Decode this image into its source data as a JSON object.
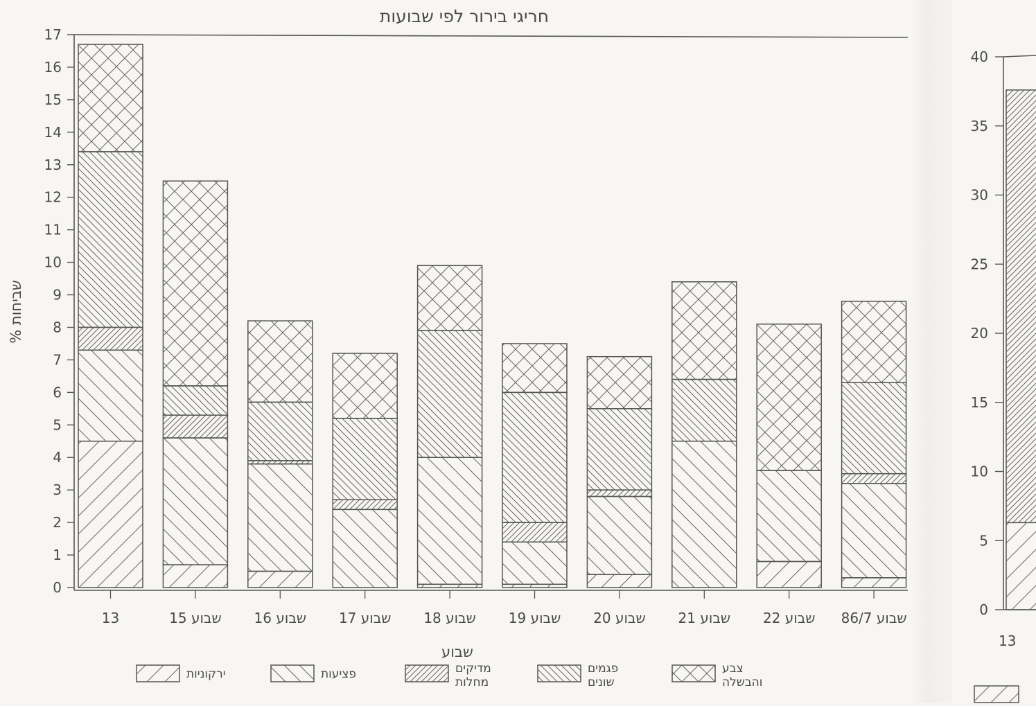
{
  "chart_data": [
    {
      "type": "bar",
      "stacked": true,
      "title": "חריגי בירור לפי שבועות",
      "xlabel": "שבוע",
      "ylabel": "% שביחות",
      "ylim": [
        0,
        17
      ],
      "yticks": [
        0,
        1,
        2,
        3,
        4,
        5,
        6,
        7,
        8,
        9,
        10,
        11,
        12,
        13,
        14,
        15,
        16,
        17
      ],
      "grid": false,
      "legend_position": "bottom",
      "categories": [
        "13 שבוע",
        "15 שבוע",
        "16 שבוע",
        "17 שבוע",
        "18 שבוע",
        "19 שבוע",
        "20 שבוע",
        "21 שבוע",
        "22 שבוע",
        "7/86 שבוע"
      ],
      "tick_labels": [
        "13",
        "15 שבוע",
        "16 שבוע",
        "17 שבוע",
        "18 שבוע",
        "19 שבוע",
        "20 שבוע",
        "21 שבוע",
        "22 שבוע",
        "שבוע 86/7"
      ],
      "series": [
        {
          "name": "ירקוניות",
          "pattern": "fwd-wide",
          "values": [
            4.5,
            0.7,
            0.5,
            0,
            0.1,
            0.1,
            0.4,
            0,
            0.8,
            0.3
          ]
        },
        {
          "name": "פציעות",
          "pattern": "back-wide",
          "values": [
            2.8,
            3.9,
            3.3,
            2.4,
            3.9,
            1.3,
            2.4,
            4.5,
            2.8,
            2.9
          ]
        },
        {
          "name": "מדיקים מחלות",
          "pattern": "fwd-dense",
          "values": [
            0.7,
            0.7,
            0.1,
            0.3,
            0,
            0.6,
            0.2,
            0,
            0,
            0.3
          ]
        },
        {
          "name": "פגמים שונים",
          "pattern": "back-dense",
          "values": [
            5.4,
            0.9,
            1.8,
            2.5,
            3.9,
            4.0,
            2.5,
            1.9,
            0,
            2.8
          ]
        },
        {
          "name": "צבע והבשלה",
          "pattern": "cross",
          "values": [
            3.3,
            6.3,
            2.5,
            2.0,
            2.0,
            1.5,
            1.6,
            3.0,
            4.5,
            2.5
          ]
        }
      ],
      "legend_lines": [
        [
          "ירקוניות"
        ],
        [
          "פציעות"
        ],
        [
          "מדיקים",
          "מחלות"
        ],
        [
          "פגמים",
          "שונים"
        ],
        [
          "צבע",
          "והבשלה"
        ]
      ],
      "colors": {
        "ink": "#555555",
        "paper": "#f7f6f2"
      }
    },
    {
      "type": "bar",
      "partial": true,
      "ylim": [
        0,
        40
      ],
      "yticks": [
        0,
        5,
        10,
        15,
        20,
        25,
        30,
        35,
        40
      ],
      "tick_labels": [
        "13"
      ],
      "series": [
        {
          "name": "",
          "pattern": "fwd-wide",
          "values": [
            6.3
          ]
        },
        {
          "name": "",
          "pattern": "fwd-dense",
          "values": [
            31.3
          ]
        }
      ]
    }
  ]
}
